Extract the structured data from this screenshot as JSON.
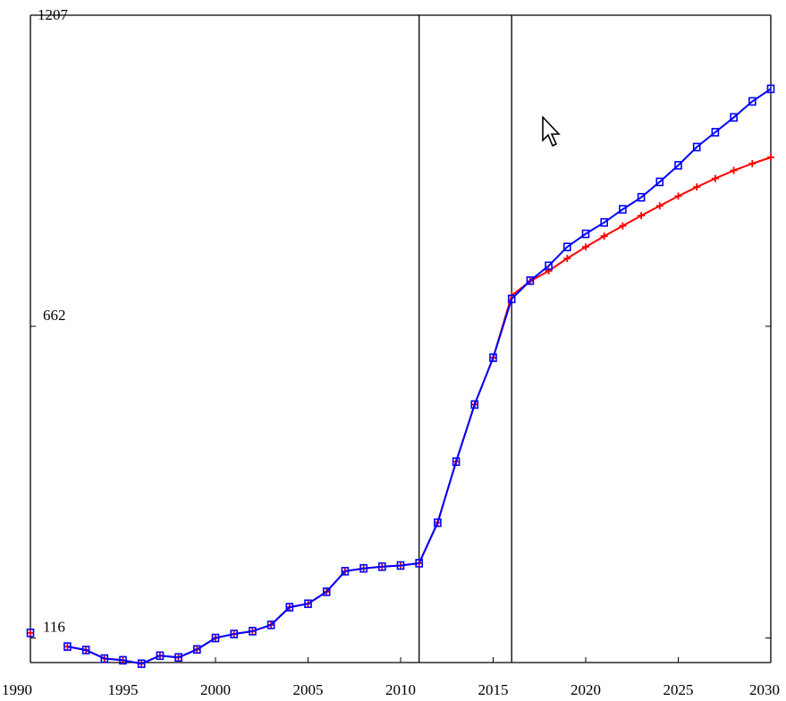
{
  "chart_data": {
    "type": "line",
    "title": "",
    "xlabel": "",
    "ylabel": "",
    "xlim": [
      1990,
      2030
    ],
    "ylim": [
      73,
      1207
    ],
    "grid": false,
    "vlines": [
      2011,
      2016
    ],
    "x_ticks": [
      "1990",
      "1995",
      "2000",
      "2005",
      "2010",
      "2015",
      "2020",
      "2025",
      "2030"
    ],
    "y_ticks": [
      {
        "value": 1207,
        "label": "1207"
      },
      {
        "value": 662,
        "label": "662"
      },
      {
        "value": 116,
        "label": "116"
      }
    ],
    "x": [
      1990,
      1992,
      1993,
      1994,
      1995,
      1996,
      1997,
      1998,
      1999,
      2000,
      2001,
      2002,
      2003,
      2004,
      2005,
      2006,
      2007,
      2008,
      2009,
      2010,
      2011,
      2012,
      2013,
      2014,
      2015,
      2016,
      2017,
      2018,
      2019,
      2020,
      2021,
      2022,
      2023,
      2024,
      2025,
      2026,
      2027,
      2028,
      2029,
      2030
    ],
    "series": [
      {
        "color": "#ff0000",
        "marker": "plus",
        "values": [
          125,
          101,
          95,
          80,
          77,
          71,
          85,
          82,
          96,
          116,
          123,
          128,
          139,
          170,
          176,
          197,
          233,
          238,
          241,
          243,
          247,
          318,
          425,
          525,
          607,
          716,
          741,
          759,
          781,
          801,
          820,
          838,
          856,
          873,
          890,
          906,
          921,
          935,
          947,
          958
        ]
      },
      {
        "color": "#0000ff",
        "marker": "square",
        "values": [
          125,
          101,
          95,
          80,
          77,
          71,
          85,
          82,
          96,
          116,
          123,
          128,
          139,
          170,
          176,
          197,
          233,
          238,
          241,
          243,
          247,
          318,
          425,
          525,
          607,
          710,
          742,
          768,
          801,
          824,
          844,
          867,
          888,
          915,
          944,
          976,
          1002,
          1028,
          1056,
          1078
        ]
      }
    ]
  }
}
